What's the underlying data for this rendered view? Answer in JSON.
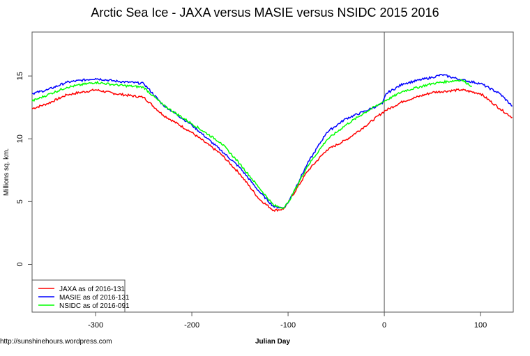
{
  "chart_data": {
    "type": "line",
    "title": "Arctic Sea Ice - JAXA versus MASIE versus NSIDC 2015 2016",
    "xlabel": "Julian Day",
    "ylabel": "Millions sq. km.",
    "xlim": [
      -366,
      134
    ],
    "ylim": [
      -3.8,
      18.5
    ],
    "xticks": [
      -300,
      -200,
      -100,
      0,
      100
    ],
    "yticks": [
      0,
      5,
      10,
      15
    ],
    "grid": false,
    "vertical_reference_line_x": 0,
    "legend_placement": "bottom-left",
    "series": [
      {
        "name": "JAXA as of 2016-131",
        "color": "#ff0000",
        "x": [
          -366,
          -350,
          -330,
          -300,
          -280,
          -250,
          -230,
          -200,
          -170,
          -150,
          -130,
          -115,
          -105,
          -100,
          -80,
          -60,
          -40,
          -20,
          0,
          20,
          50,
          80,
          100,
          120,
          133
        ],
        "y": [
          12.4,
          12.8,
          13.5,
          13.9,
          13.6,
          13.3,
          11.9,
          10.5,
          8.8,
          7.2,
          5.2,
          4.3,
          4.4,
          4.9,
          7.4,
          9.1,
          9.9,
          11.0,
          12.2,
          13.0,
          13.7,
          13.9,
          13.6,
          12.4,
          11.7
        ]
      },
      {
        "name": "MASIE as of 2016-131",
        "color": "#0000ff",
        "x": [
          -366,
          -350,
          -330,
          -300,
          -280,
          -250,
          -230,
          -200,
          -170,
          -150,
          -130,
          -115,
          -105,
          -100,
          -80,
          -60,
          -40,
          -20,
          -2,
          2,
          20,
          50,
          60,
          80,
          100,
          120,
          133
        ],
        "y": [
          13.6,
          13.9,
          14.5,
          14.8,
          14.6,
          14.4,
          12.7,
          11.1,
          9.1,
          7.7,
          5.8,
          4.6,
          4.5,
          4.9,
          8.0,
          10.5,
          11.6,
          12.2,
          12.8,
          13.6,
          14.4,
          14.9,
          15.1,
          14.7,
          14.4,
          13.6,
          12.6
        ]
      },
      {
        "name": "NSIDC as of 2016-091",
        "color": "#00ff00",
        "x": [
          -366,
          -350,
          -330,
          -300,
          -280,
          -250,
          -230,
          -200,
          -170,
          -150,
          -130,
          -115,
          -105,
          -100,
          -80,
          -60,
          -40,
          -20,
          0,
          20,
          50,
          80,
          91
        ],
        "y": [
          13.0,
          13.5,
          14.1,
          14.5,
          14.3,
          14.1,
          12.7,
          11.2,
          9.7,
          8.0,
          6.1,
          4.7,
          4.5,
          4.9,
          7.8,
          9.9,
          11.1,
          12.1,
          13.0,
          13.8,
          14.4,
          14.7,
          14.2
        ]
      }
    ]
  },
  "footer": {
    "source": "http://sunshinehours.wordpress.com"
  }
}
